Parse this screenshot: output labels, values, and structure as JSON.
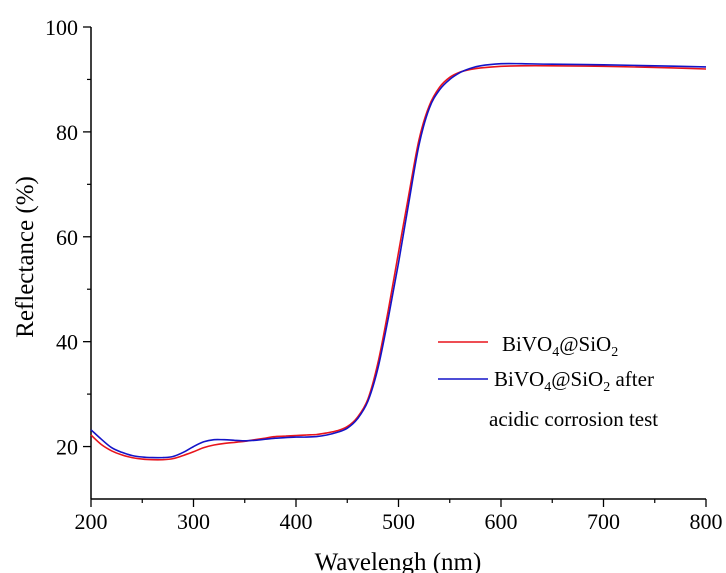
{
  "chart_data": {
    "type": "line",
    "xlabel": "Wavelengh (nm)",
    "ylabel": "Reflectance (%)",
    "xlim": [
      200,
      800
    ],
    "ylim": [
      10,
      100
    ],
    "x_ticks": [
      "200",
      "300",
      "400",
      "500",
      "600",
      "700",
      "800"
    ],
    "y_ticks": [
      "20",
      "40",
      "60",
      "80",
      "100"
    ],
    "grid": false,
    "legend_position": "right",
    "series": [
      {
        "name": "BiVO4@SiO2",
        "color": "#e8141c",
        "points": [
          [
            200,
            22.2
          ],
          [
            210,
            20.4
          ],
          [
            220,
            19.2
          ],
          [
            230,
            18.4
          ],
          [
            240,
            17.9
          ],
          [
            250,
            17.6
          ],
          [
            260,
            17.5
          ],
          [
            270,
            17.5
          ],
          [
            280,
            17.7
          ],
          [
            290,
            18.3
          ],
          [
            300,
            19.0
          ],
          [
            310,
            19.8
          ],
          [
            320,
            20.3
          ],
          [
            330,
            20.6
          ],
          [
            340,
            20.8
          ],
          [
            350,
            21.0
          ],
          [
            360,
            21.3
          ],
          [
            370,
            21.6
          ],
          [
            380,
            21.9
          ],
          [
            390,
            22.0
          ],
          [
            400,
            22.1
          ],
          [
            410,
            22.2
          ],
          [
            420,
            22.3
          ],
          [
            430,
            22.6
          ],
          [
            440,
            23.0
          ],
          [
            450,
            23.8
          ],
          [
            460,
            25.6
          ],
          [
            470,
            29.0
          ],
          [
            480,
            36.0
          ],
          [
            490,
            46.0
          ],
          [
            500,
            57.0
          ],
          [
            510,
            68.0
          ],
          [
            520,
            78.5
          ],
          [
            530,
            85.0
          ],
          [
            540,
            88.5
          ],
          [
            550,
            90.4
          ],
          [
            560,
            91.4
          ],
          [
            570,
            91.9
          ],
          [
            580,
            92.2
          ],
          [
            600,
            92.5
          ],
          [
            620,
            92.6
          ],
          [
            650,
            92.6
          ],
          [
            700,
            92.5
          ],
          [
            750,
            92.3
          ],
          [
            800,
            92.0
          ]
        ]
      },
      {
        "name": "BiVO4@SiO2 after acidic corrosion test",
        "color": "#1414c8",
        "points": [
          [
            200,
            23.2
          ],
          [
            210,
            21.4
          ],
          [
            220,
            19.8
          ],
          [
            230,
            18.9
          ],
          [
            240,
            18.3
          ],
          [
            250,
            18.0
          ],
          [
            260,
            17.9
          ],
          [
            270,
            17.9
          ],
          [
            280,
            18.1
          ],
          [
            290,
            18.9
          ],
          [
            300,
            20.0
          ],
          [
            310,
            20.9
          ],
          [
            320,
            21.3
          ],
          [
            330,
            21.3
          ],
          [
            340,
            21.2
          ],
          [
            350,
            21.1
          ],
          [
            360,
            21.2
          ],
          [
            370,
            21.4
          ],
          [
            380,
            21.6
          ],
          [
            390,
            21.7
          ],
          [
            400,
            21.8
          ],
          [
            410,
            21.8
          ],
          [
            420,
            21.9
          ],
          [
            430,
            22.2
          ],
          [
            440,
            22.7
          ],
          [
            450,
            23.5
          ],
          [
            460,
            25.3
          ],
          [
            470,
            28.6
          ],
          [
            480,
            35.0
          ],
          [
            490,
            44.5
          ],
          [
            500,
            55.0
          ],
          [
            510,
            66.5
          ],
          [
            520,
            77.5
          ],
          [
            530,
            84.5
          ],
          [
            540,
            88.0
          ],
          [
            550,
            90.0
          ],
          [
            560,
            91.3
          ],
          [
            570,
            92.1
          ],
          [
            580,
            92.6
          ],
          [
            600,
            93.0
          ],
          [
            620,
            93.0
          ],
          [
            650,
            92.9
          ],
          [
            700,
            92.8
          ],
          [
            750,
            92.6
          ],
          [
            800,
            92.4
          ]
        ]
      }
    ],
    "legend": {
      "entries": [
        {
          "label_main": "BiVO",
          "sub1": "4",
          "mid": "@SiO",
          "sub2": "2",
          "tail": ""
        },
        {
          "label_main": "BiVO",
          "sub1": "4",
          "mid": "@SiO",
          "sub2": "2",
          "tail": " after",
          "line2": "acidic corrosion test"
        }
      ]
    }
  }
}
